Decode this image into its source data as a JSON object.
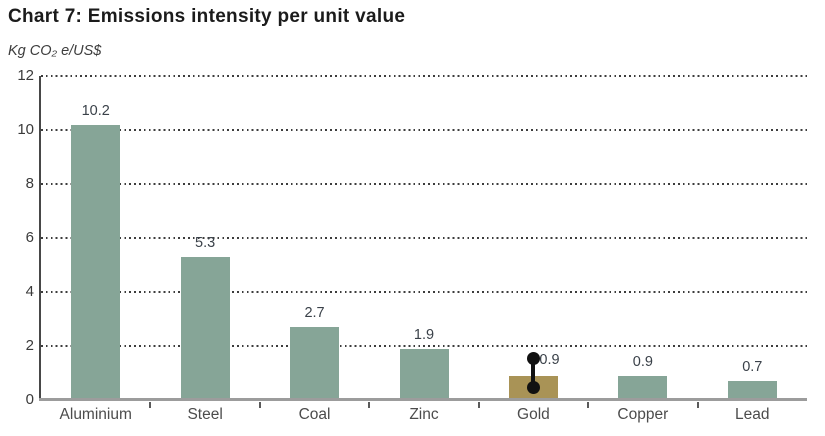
{
  "chart_data": {
    "type": "bar",
    "title": "Chart 7: Emissions intensity per unit value",
    "ylabel": "Kg CO₂ e/US$",
    "categories": [
      "Aluminium",
      "Steel",
      "Coal",
      "Zinc",
      "Gold",
      "Copper",
      "Lead"
    ],
    "values": [
      10.2,
      5.3,
      2.7,
      1.9,
      0.9,
      0.9,
      0.7
    ],
    "value_labels": [
      "10.2",
      "5.3",
      "2.7",
      "1.9",
      "0.9",
      "0.9",
      "0.7"
    ],
    "ylim": [
      0,
      12
    ],
    "yticks": [
      0,
      2,
      4,
      6,
      8,
      10,
      12
    ],
    "grid": "dotted-horizontal",
    "legend": "none",
    "colors": {
      "bar_default": "#86a597",
      "bar_gold": "#a99356",
      "grid": "#3c3c3c",
      "axis": "#474747",
      "baseline": "#9c9c9c",
      "value_label": "#3a4149",
      "category_label": "#4c4c4c",
      "marker": "#111111"
    },
    "bar_color_overrides": {
      "Gold": "#a99356"
    },
    "range_marker": {
      "category": "Gold",
      "low": 0.45,
      "high": 1.55
    }
  }
}
